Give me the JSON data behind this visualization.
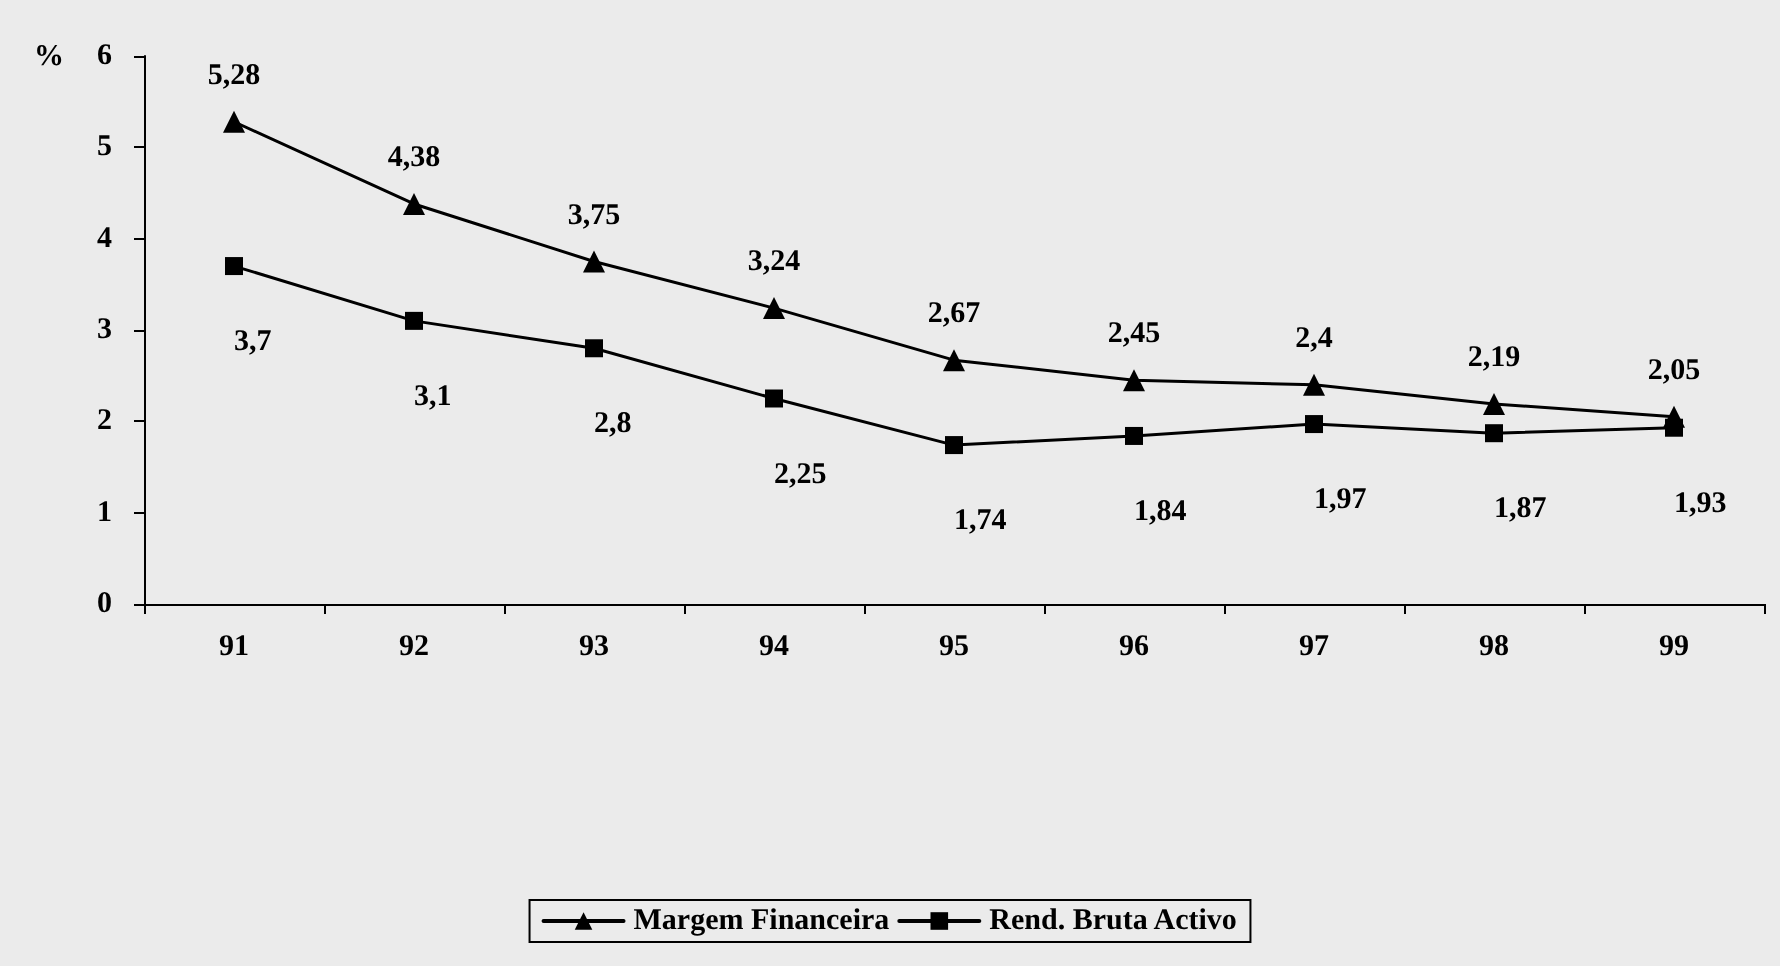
{
  "chart_data": {
    "type": "line",
    "ylabel": "%",
    "categories": [
      "91",
      "92",
      "93",
      "94",
      "95",
      "96",
      "97",
      "98",
      "99"
    ],
    "series": [
      {
        "name": "Margem Financeira",
        "color": "#000000",
        "marker": "triangle",
        "values": [
          5.28,
          4.38,
          3.75,
          3.24,
          2.67,
          2.45,
          2.4,
          2.19,
          2.05
        ],
        "value_labels": [
          "5,28",
          "4,38",
          "3,75",
          "3,24",
          "2,67",
          "2,45",
          "2,4",
          "2,19",
          "2,05"
        ]
      },
      {
        "name": "Rend. Bruta Activo",
        "color": "#000000",
        "marker": "square",
        "values": [
          3.7,
          3.1,
          2.8,
          2.25,
          1.74,
          1.84,
          1.97,
          1.87,
          1.93
        ],
        "value_labels": [
          "3,7",
          "3,1",
          "2,8",
          "2,25",
          "1,74",
          "1,84",
          "1,97",
          "1,87",
          "1,93"
        ]
      }
    ],
    "ylim": [
      0,
      6
    ],
    "yticks": [
      0,
      1,
      2,
      3,
      4,
      5,
      6
    ],
    "grid": false,
    "legend": "bottom",
    "line_style": "solid"
  }
}
